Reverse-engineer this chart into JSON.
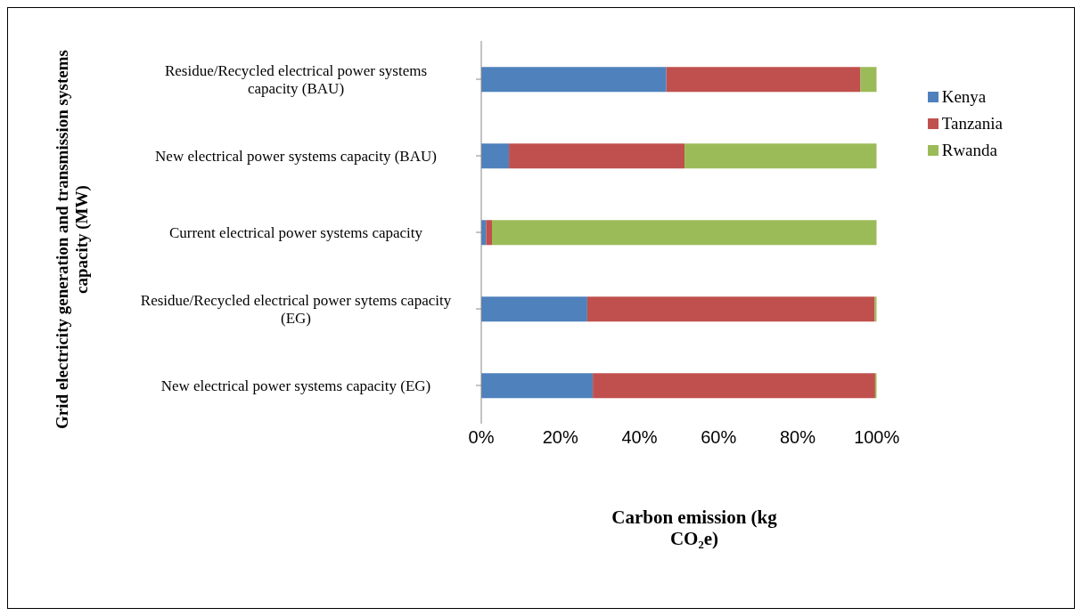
{
  "chart_data": {
    "type": "bar",
    "orientation": "horizontal",
    "stacked": true,
    "categories": [
      "Residue/Recycled electrical power systems capacity (BAU)",
      "New electrical power systems capacity (BAU)",
      "Current electrical power systems capacity",
      "Residue/Recycled electrical power sytems capacity (EG)",
      "New electrical power systems capacity (EG)"
    ],
    "series": [
      {
        "name": "Kenya",
        "color": "#4f81bd",
        "values": [
          46.8,
          7,
          1.2,
          26.8,
          28.2
        ]
      },
      {
        "name": "Tanzania",
        "color": "#c0504d",
        "values": [
          49.1,
          44.4,
          1.5,
          72.7,
          71.4
        ]
      },
      {
        "name": "Rwanda",
        "color": "#9bbb59",
        "values": [
          4.1,
          48.6,
          97.3,
          0.5,
          0.4
        ]
      }
    ],
    "xlim": [
      0,
      100
    ],
    "xticks": [
      {
        "value": 0,
        "label": "0%"
      },
      {
        "value": 20,
        "label": "20%"
      },
      {
        "value": 40,
        "label": "40%"
      },
      {
        "value": 60,
        "label": "60%"
      },
      {
        "value": 80,
        "label": "80%"
      },
      {
        "value": 100,
        "label": "100%"
      }
    ],
    "xlabel": "Carbon emission (kg CO₂e)",
    "ylabel": "Grid electricity generation and transmission systems  capacity (MW)",
    "legend": "right"
  }
}
